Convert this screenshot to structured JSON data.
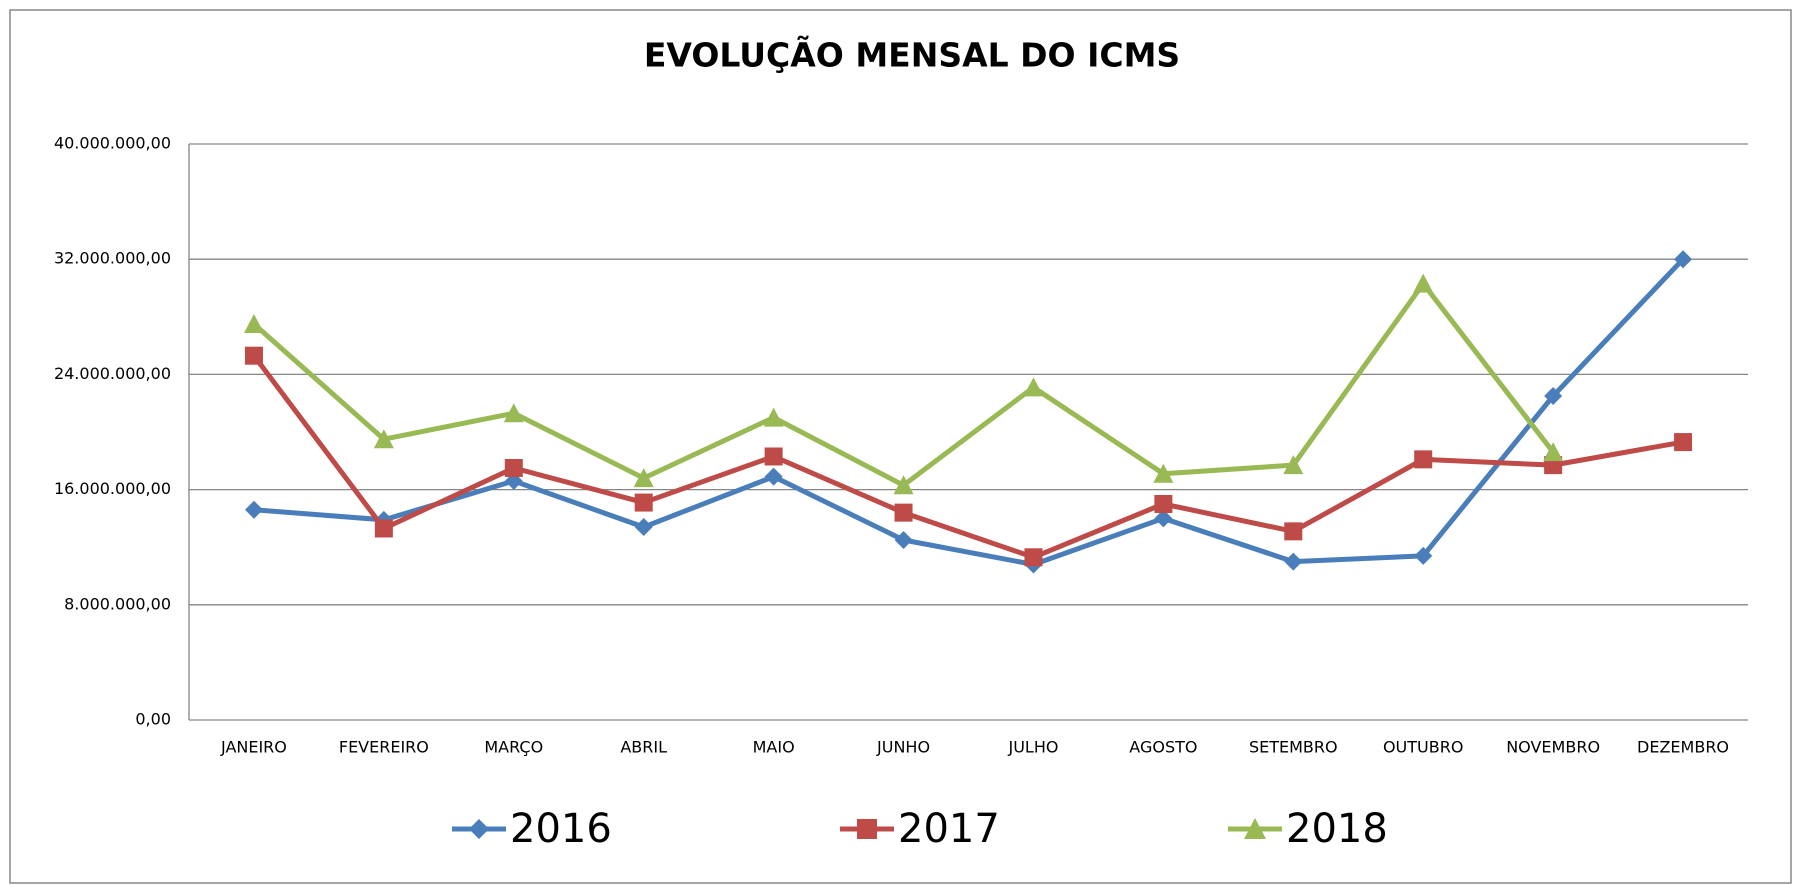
{
  "chart_data": {
    "type": "line",
    "title": "EVOLUÇÃO MENSAL DO ICMS",
    "categories": [
      "JANEIRO",
      "FEVEREIRO",
      "MARÇO",
      "ABRIL",
      "MAIO",
      "JUNHO",
      "JULHO",
      "AGOSTO",
      "SETEMBRO",
      "OUTUBRO",
      "NOVEMBRO",
      "DEZEMBRO"
    ],
    "series": [
      {
        "name": "2016",
        "color": "#4a7ebb",
        "marker": "diamond",
        "values": [
          14600000,
          13900000,
          16600000,
          13400000,
          16900000,
          12500000,
          10800000,
          14000000,
          11000000,
          11400000,
          22500000,
          32000000
        ]
      },
      {
        "name": "2017",
        "color": "#be4b48",
        "marker": "square",
        "values": [
          25300000,
          13300000,
          17500000,
          15100000,
          18300000,
          14400000,
          11300000,
          15000000,
          13100000,
          18100000,
          17700000,
          19300000
        ]
      },
      {
        "name": "2018",
        "color": "#98b954",
        "marker": "triangle",
        "values": [
          27500000,
          19500000,
          21300000,
          16800000,
          21000000,
          16300000,
          23100000,
          17100000,
          17700000,
          30300000,
          18600000,
          null
        ]
      }
    ],
    "ylim": [
      0,
      40000000
    ],
    "yticks": [
      {
        "value": 0,
        "label": "0,00"
      },
      {
        "value": 8000000,
        "label": "8.000.000,00"
      },
      {
        "value": 16000000,
        "label": "16.000.000,00"
      },
      {
        "value": 24000000,
        "label": "24.000.000,00"
      },
      {
        "value": 32000000,
        "label": "32.000.000,00"
      },
      {
        "value": 40000000,
        "label": "40.000.000,00"
      }
    ],
    "grid": true,
    "legend": "bottom"
  }
}
